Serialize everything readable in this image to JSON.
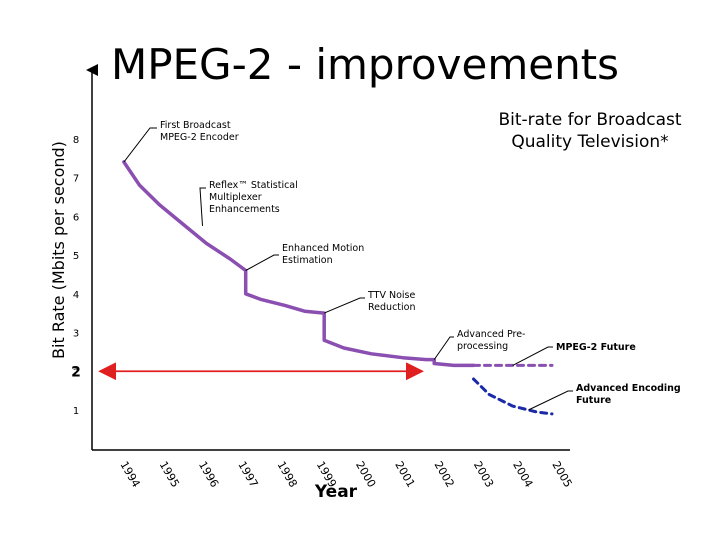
{
  "slide": {
    "title": "MPEG-2 - improvements"
  },
  "chart_data": {
    "type": "line",
    "title": "Bit-rate for Broadcast Quality Television*",
    "xlabel": "Year",
    "ylabel": "Bit Rate (Mbits per second)",
    "categories": [
      "1994",
      "1995",
      "1996",
      "1997",
      "1998",
      "1999",
      "2000",
      "2001",
      "2002",
      "2003",
      "2004",
      "2005"
    ],
    "y_ticks": [
      "1",
      "2",
      "3",
      "4",
      "5",
      "6",
      "7",
      "8"
    ],
    "ylim": [
      0.2,
      8.6
    ],
    "reference_line": {
      "label": "2",
      "y": 2,
      "x_from": 1994,
      "x_to": 2002,
      "color": "#e02020"
    },
    "series": [
      {
        "style": "solid",
        "color": "#8a4fb0",
        "points": [
          [
            1994.1,
            7.4
          ],
          [
            1994.5,
            6.8
          ],
          [
            1995.0,
            6.3
          ],
          [
            1995.6,
            5.8
          ],
          [
            1996.2,
            5.3
          ],
          [
            1996.8,
            4.9
          ],
          [
            1997.2,
            4.6
          ],
          [
            1997.2,
            4.0
          ],
          [
            1997.6,
            3.85
          ],
          [
            1998.2,
            3.7
          ],
          [
            1998.7,
            3.55
          ],
          [
            1999.2,
            3.5
          ],
          [
            1999.2,
            2.8
          ],
          [
            1999.7,
            2.6
          ],
          [
            2000.4,
            2.45
          ],
          [
            2001.2,
            2.35
          ],
          [
            2001.8,
            2.3
          ],
          [
            2002.0,
            2.3
          ],
          [
            2002.0,
            2.2
          ],
          [
            2002.5,
            2.15
          ],
          [
            2003.0,
            2.15
          ]
        ]
      },
      {
        "style": "dashed",
        "color": "#8a4fb0",
        "points": [
          [
            2003.0,
            2.15
          ],
          [
            2005.0,
            2.15
          ]
        ]
      },
      {
        "style": "dashed",
        "color": "#1a2aa8",
        "points": [
          [
            2003.0,
            1.8
          ],
          [
            2003.4,
            1.4
          ],
          [
            2004.0,
            1.1
          ],
          [
            2004.6,
            0.95
          ],
          [
            2005.0,
            0.9
          ]
        ]
      }
    ],
    "annotations": [
      {
        "id": "first-broadcast",
        "lines": [
          "First Broadcast",
          "MPEG-2 Encoder"
        ],
        "at": [
          1994.1,
          7.4
        ]
      },
      {
        "id": "reflex",
        "lines": [
          "Reflex™ Statistical",
          "Multiplexer",
          "Enhancements"
        ],
        "at": [
          1996.1,
          5.75
        ]
      },
      {
        "id": "enhanced-motion",
        "lines": [
          "Enhanced Motion",
          "Estimation"
        ],
        "at": [
          1997.2,
          4.6
        ]
      },
      {
        "id": "ttv-noise",
        "lines": [
          "TTV Noise",
          "Reduction"
        ],
        "at": [
          1999.2,
          3.5
        ]
      },
      {
        "id": "advanced-pre",
        "lines": [
          "Advanced Pre-",
          "processing"
        ],
        "at": [
          2002.0,
          2.3
        ]
      },
      {
        "id": "mpeg2-future",
        "lines": [
          "MPEG-2 Future"
        ],
        "at": [
          2004.0,
          2.15
        ]
      },
      {
        "id": "advanced-encoding",
        "lines": [
          "Advanced Encoding",
          "Future"
        ],
        "at": [
          2004.4,
          1.0
        ]
      }
    ]
  }
}
